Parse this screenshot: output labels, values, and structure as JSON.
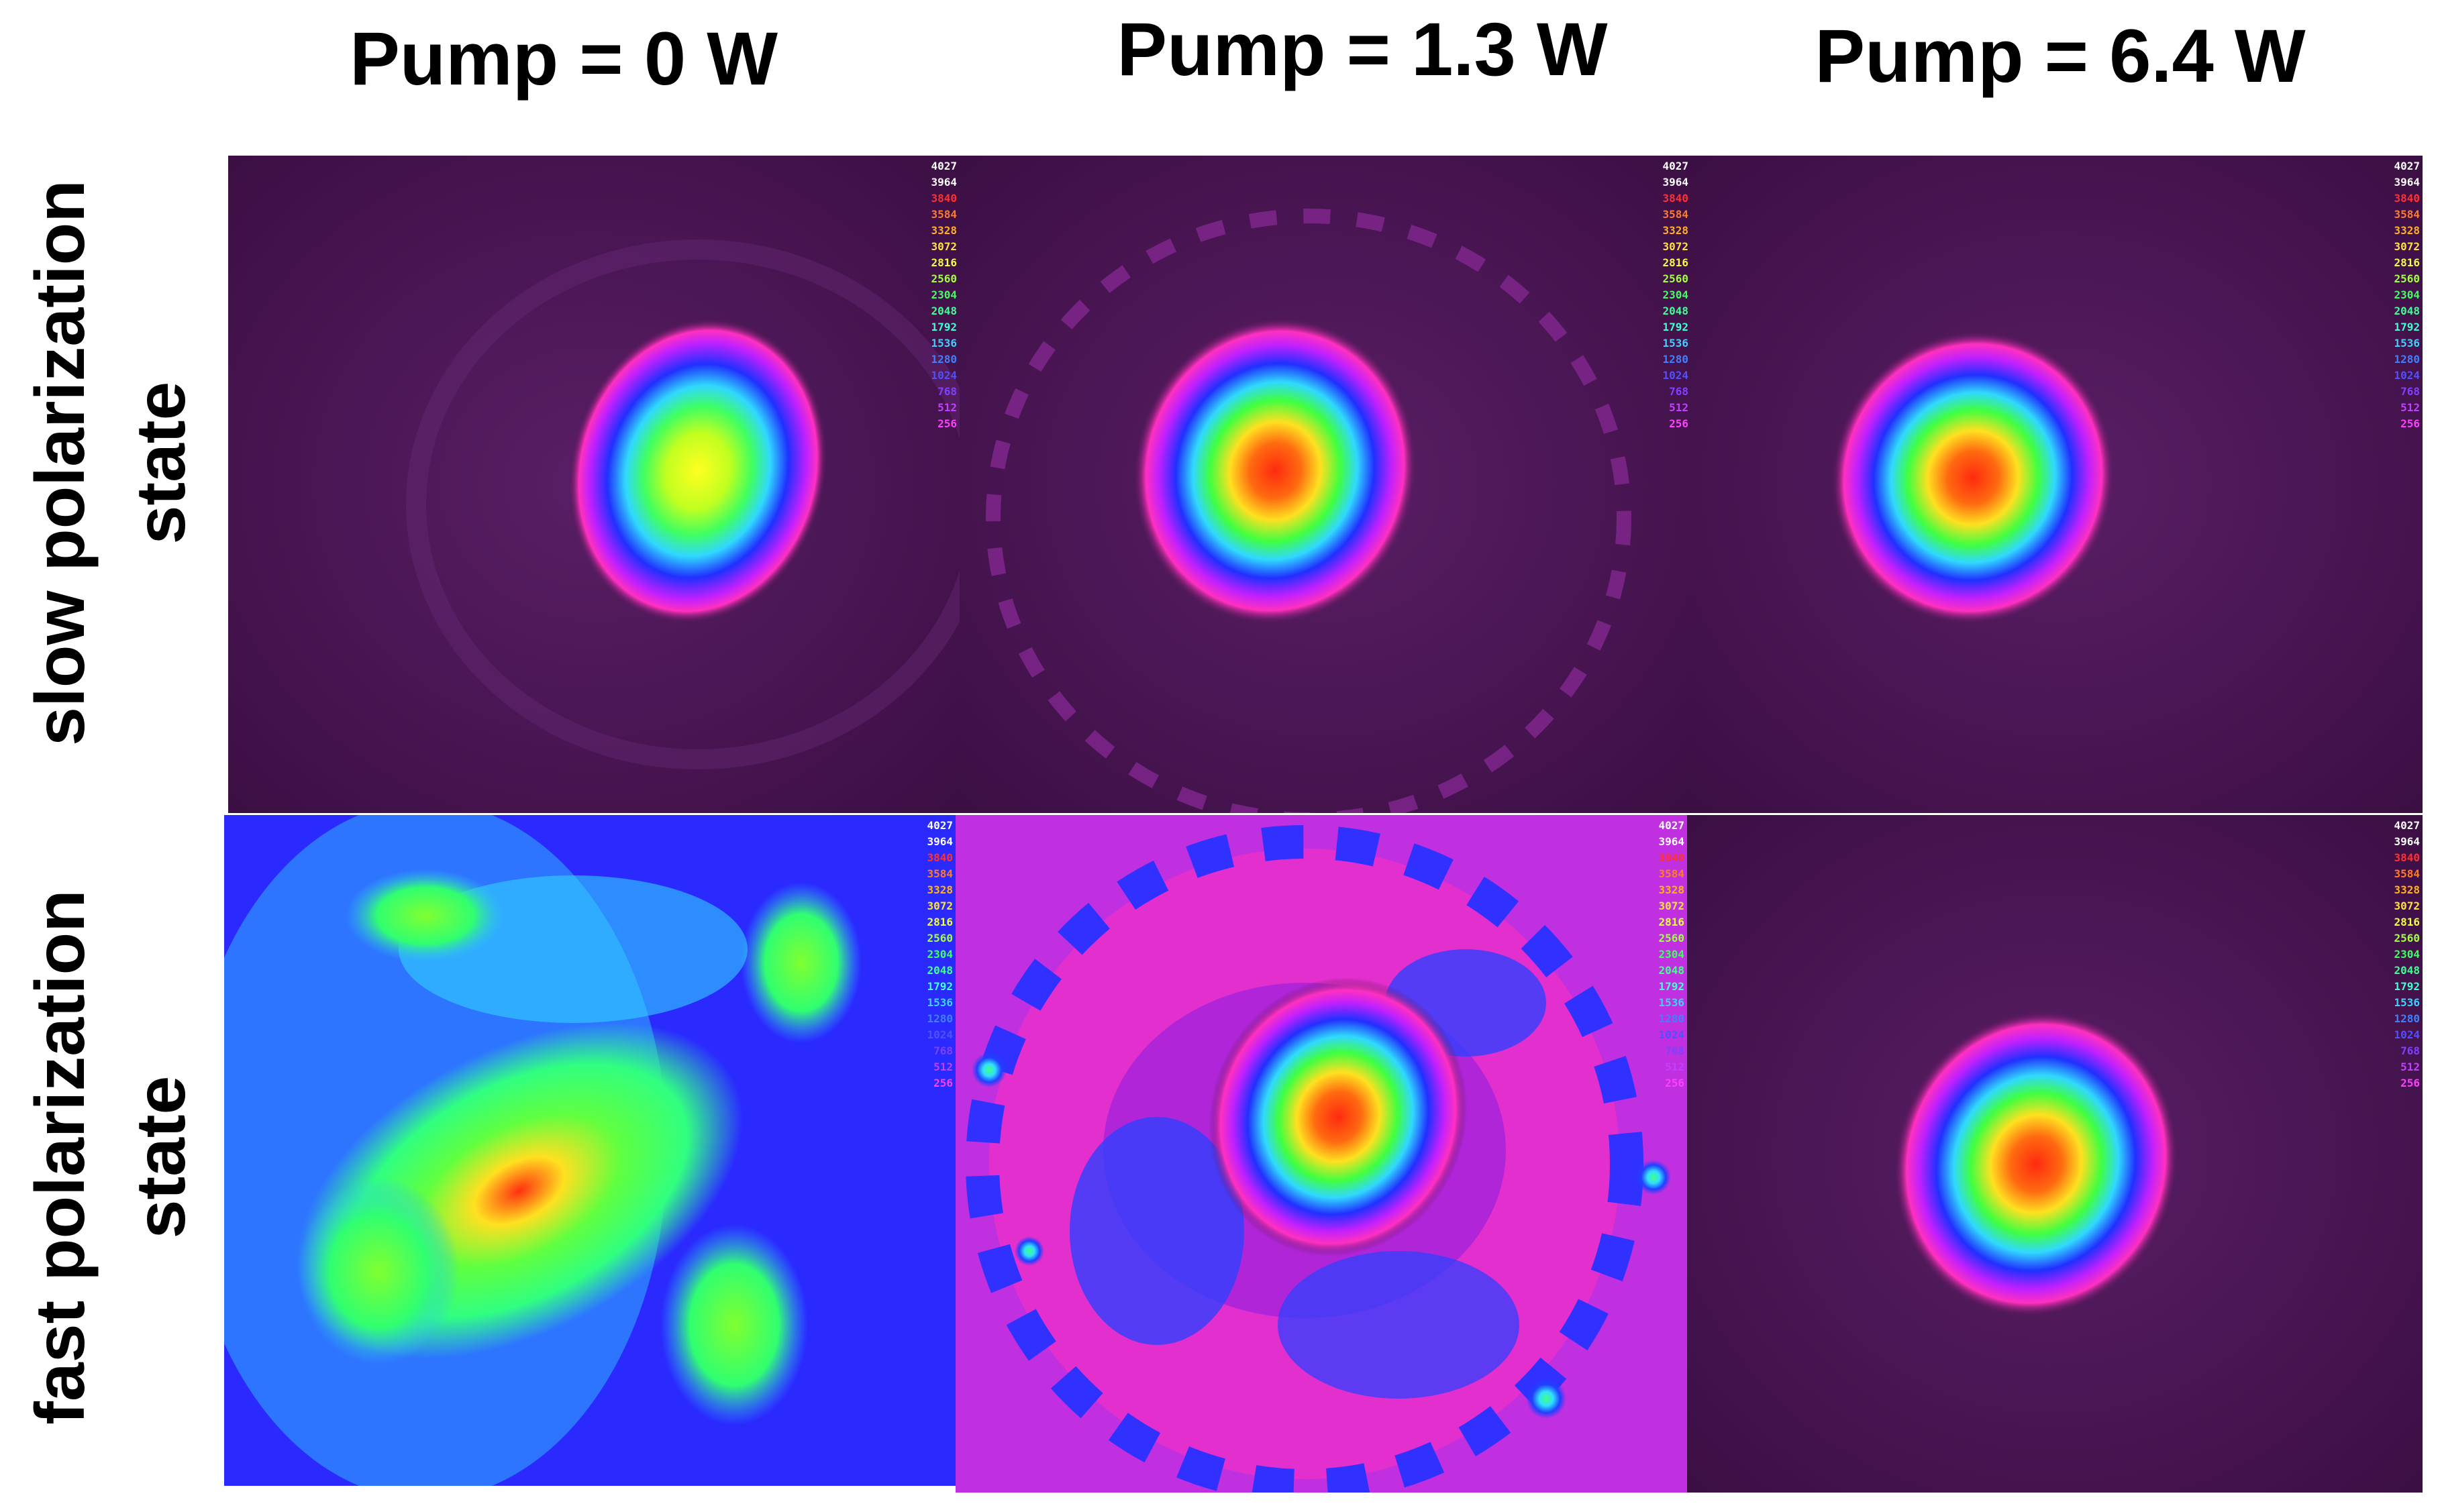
{
  "columns": [
    {
      "label": "Pump = 0 W"
    },
    {
      "label": "Pump = 1.3 W"
    },
    {
      "label": "Pump = 6.4 W"
    }
  ],
  "rows": [
    {
      "label_line1": "slow polarization",
      "label_line2": "state"
    },
    {
      "label_line1": "fast polarization",
      "label_line2": "state"
    }
  ],
  "scale": {
    "values": [
      "4027",
      "3964",
      "3840",
      "3584",
      "3328",
      "3072",
      "2816",
      "2560",
      "2304",
      "2048",
      "1792",
      "1536",
      "1280",
      "1024",
      "768",
      "512",
      "256"
    ],
    "colors": [
      "#ffffff",
      "#ffffff",
      "#ff3030",
      "#ff7a2a",
      "#ffb020",
      "#ffe040",
      "#f0ff40",
      "#a0ff40",
      "#40ff60",
      "#40ff90",
      "#40ffd0",
      "#40d0ff",
      "#4080ff",
      "#5050ff",
      "#8040ff",
      "#c040ff",
      "#ff40ff"
    ]
  },
  "colors": {
    "background_purple": "#4a1550",
    "background_blue": "#2a2aff",
    "peak_red": "#ff2a10"
  }
}
